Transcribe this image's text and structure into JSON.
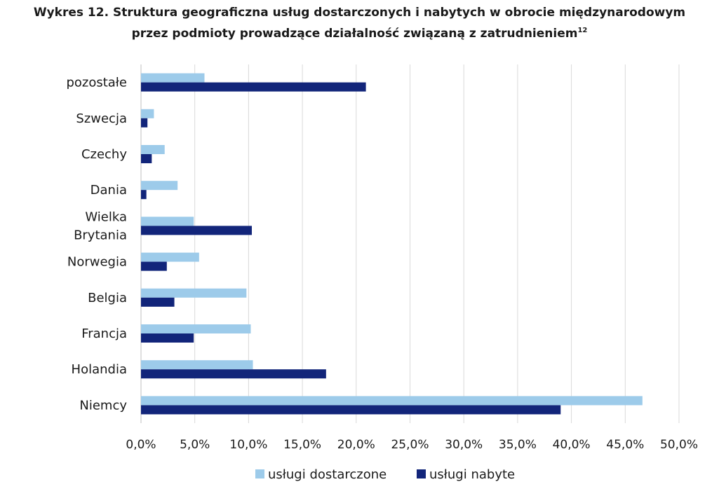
{
  "title": {
    "line1": "Wykres 12. Struktura geograficzna usług dostarczonych i nabytych w obrocie międzynarodowym",
    "line2": "przez podmioty prowadzące działalność związaną z zatrudnieniem",
    "footnote_ref": "12"
  },
  "chart_data": {
    "type": "bar",
    "orientation": "horizontal",
    "categories": [
      "pozostałe",
      "Szwecja",
      "Czechy",
      "Dania",
      "Wielka Brytania",
      "Norwegia",
      "Belgia",
      "Francja",
      "Holandia",
      "Niemcy"
    ],
    "category_label_lines": [
      [
        "pozostałe"
      ],
      [
        "Szwecja"
      ],
      [
        "Czechy"
      ],
      [
        "Dania"
      ],
      [
        "Wielka",
        "Brytania"
      ],
      [
        "Norwegia"
      ],
      [
        "Belgia"
      ],
      [
        "Francja"
      ],
      [
        "Holandia"
      ],
      [
        "Niemcy"
      ]
    ],
    "series": [
      {
        "name": "usługi dostarczone",
        "color": "#9dcbea",
        "values": [
          5.9,
          1.2,
          2.2,
          3.4,
          4.9,
          5.4,
          9.8,
          10.2,
          10.4,
          46.6
        ]
      },
      {
        "name": "usługi nabyte",
        "color": "#12257a",
        "values": [
          20.9,
          0.6,
          1.0,
          0.5,
          10.3,
          2.4,
          3.1,
          4.9,
          17.2,
          39.0
        ]
      }
    ],
    "xlim": [
      0,
      50
    ],
    "xticks": [
      "0,0%",
      "5,0%",
      "10,0%",
      "15,0%",
      "20,0%",
      "25,0%",
      "30,0%",
      "35,0%",
      "40,0%",
      "45,0%",
      "50,0%"
    ],
    "grid": true,
    "legend_position": "bottom"
  }
}
